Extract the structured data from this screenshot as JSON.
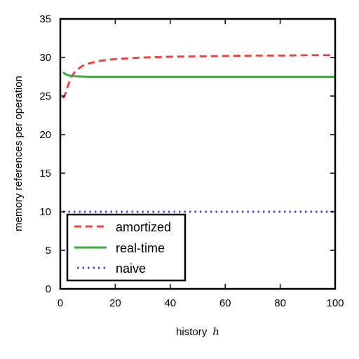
{
  "chart_data": {
    "type": "line",
    "xlabel": "history",
    "xlabel_var": "h",
    "ylabel": "memory references per operation",
    "xlim": [
      0,
      100
    ],
    "ylim": [
      0,
      35
    ],
    "xticks": [
      "0",
      "20",
      "40",
      "60",
      "80",
      "100"
    ],
    "yticks": [
      "0",
      "5",
      "10",
      "15",
      "20",
      "25",
      "30",
      "35"
    ],
    "grid": false,
    "legend_position": "lower-left",
    "series": [
      {
        "name": "amortized",
        "color": "#ee4444",
        "style": "dashed",
        "x": [
          1,
          2,
          3,
          4,
          5,
          6,
          8,
          10,
          15,
          20,
          30,
          40,
          50,
          60,
          70,
          80,
          90,
          100
        ],
        "y": [
          24.7,
          25.4,
          26.6,
          27.5,
          28.0,
          28.4,
          28.9,
          29.2,
          29.6,
          29.8,
          30.0,
          30.1,
          30.15,
          30.2,
          30.25,
          30.25,
          30.3,
          30.3
        ]
      },
      {
        "name": "real-time",
        "color": "#44a844",
        "style": "solid",
        "x": [
          1,
          2,
          3,
          4,
          6,
          10,
          20,
          40,
          60,
          80,
          100
        ],
        "y": [
          28.1,
          27.8,
          27.7,
          27.6,
          27.55,
          27.5,
          27.5,
          27.5,
          27.5,
          27.5,
          27.5
        ]
      },
      {
        "name": "naive",
        "color": "#4444ee",
        "style": "dotted",
        "x": [
          1,
          100
        ],
        "y": [
          10,
          10
        ]
      }
    ]
  }
}
